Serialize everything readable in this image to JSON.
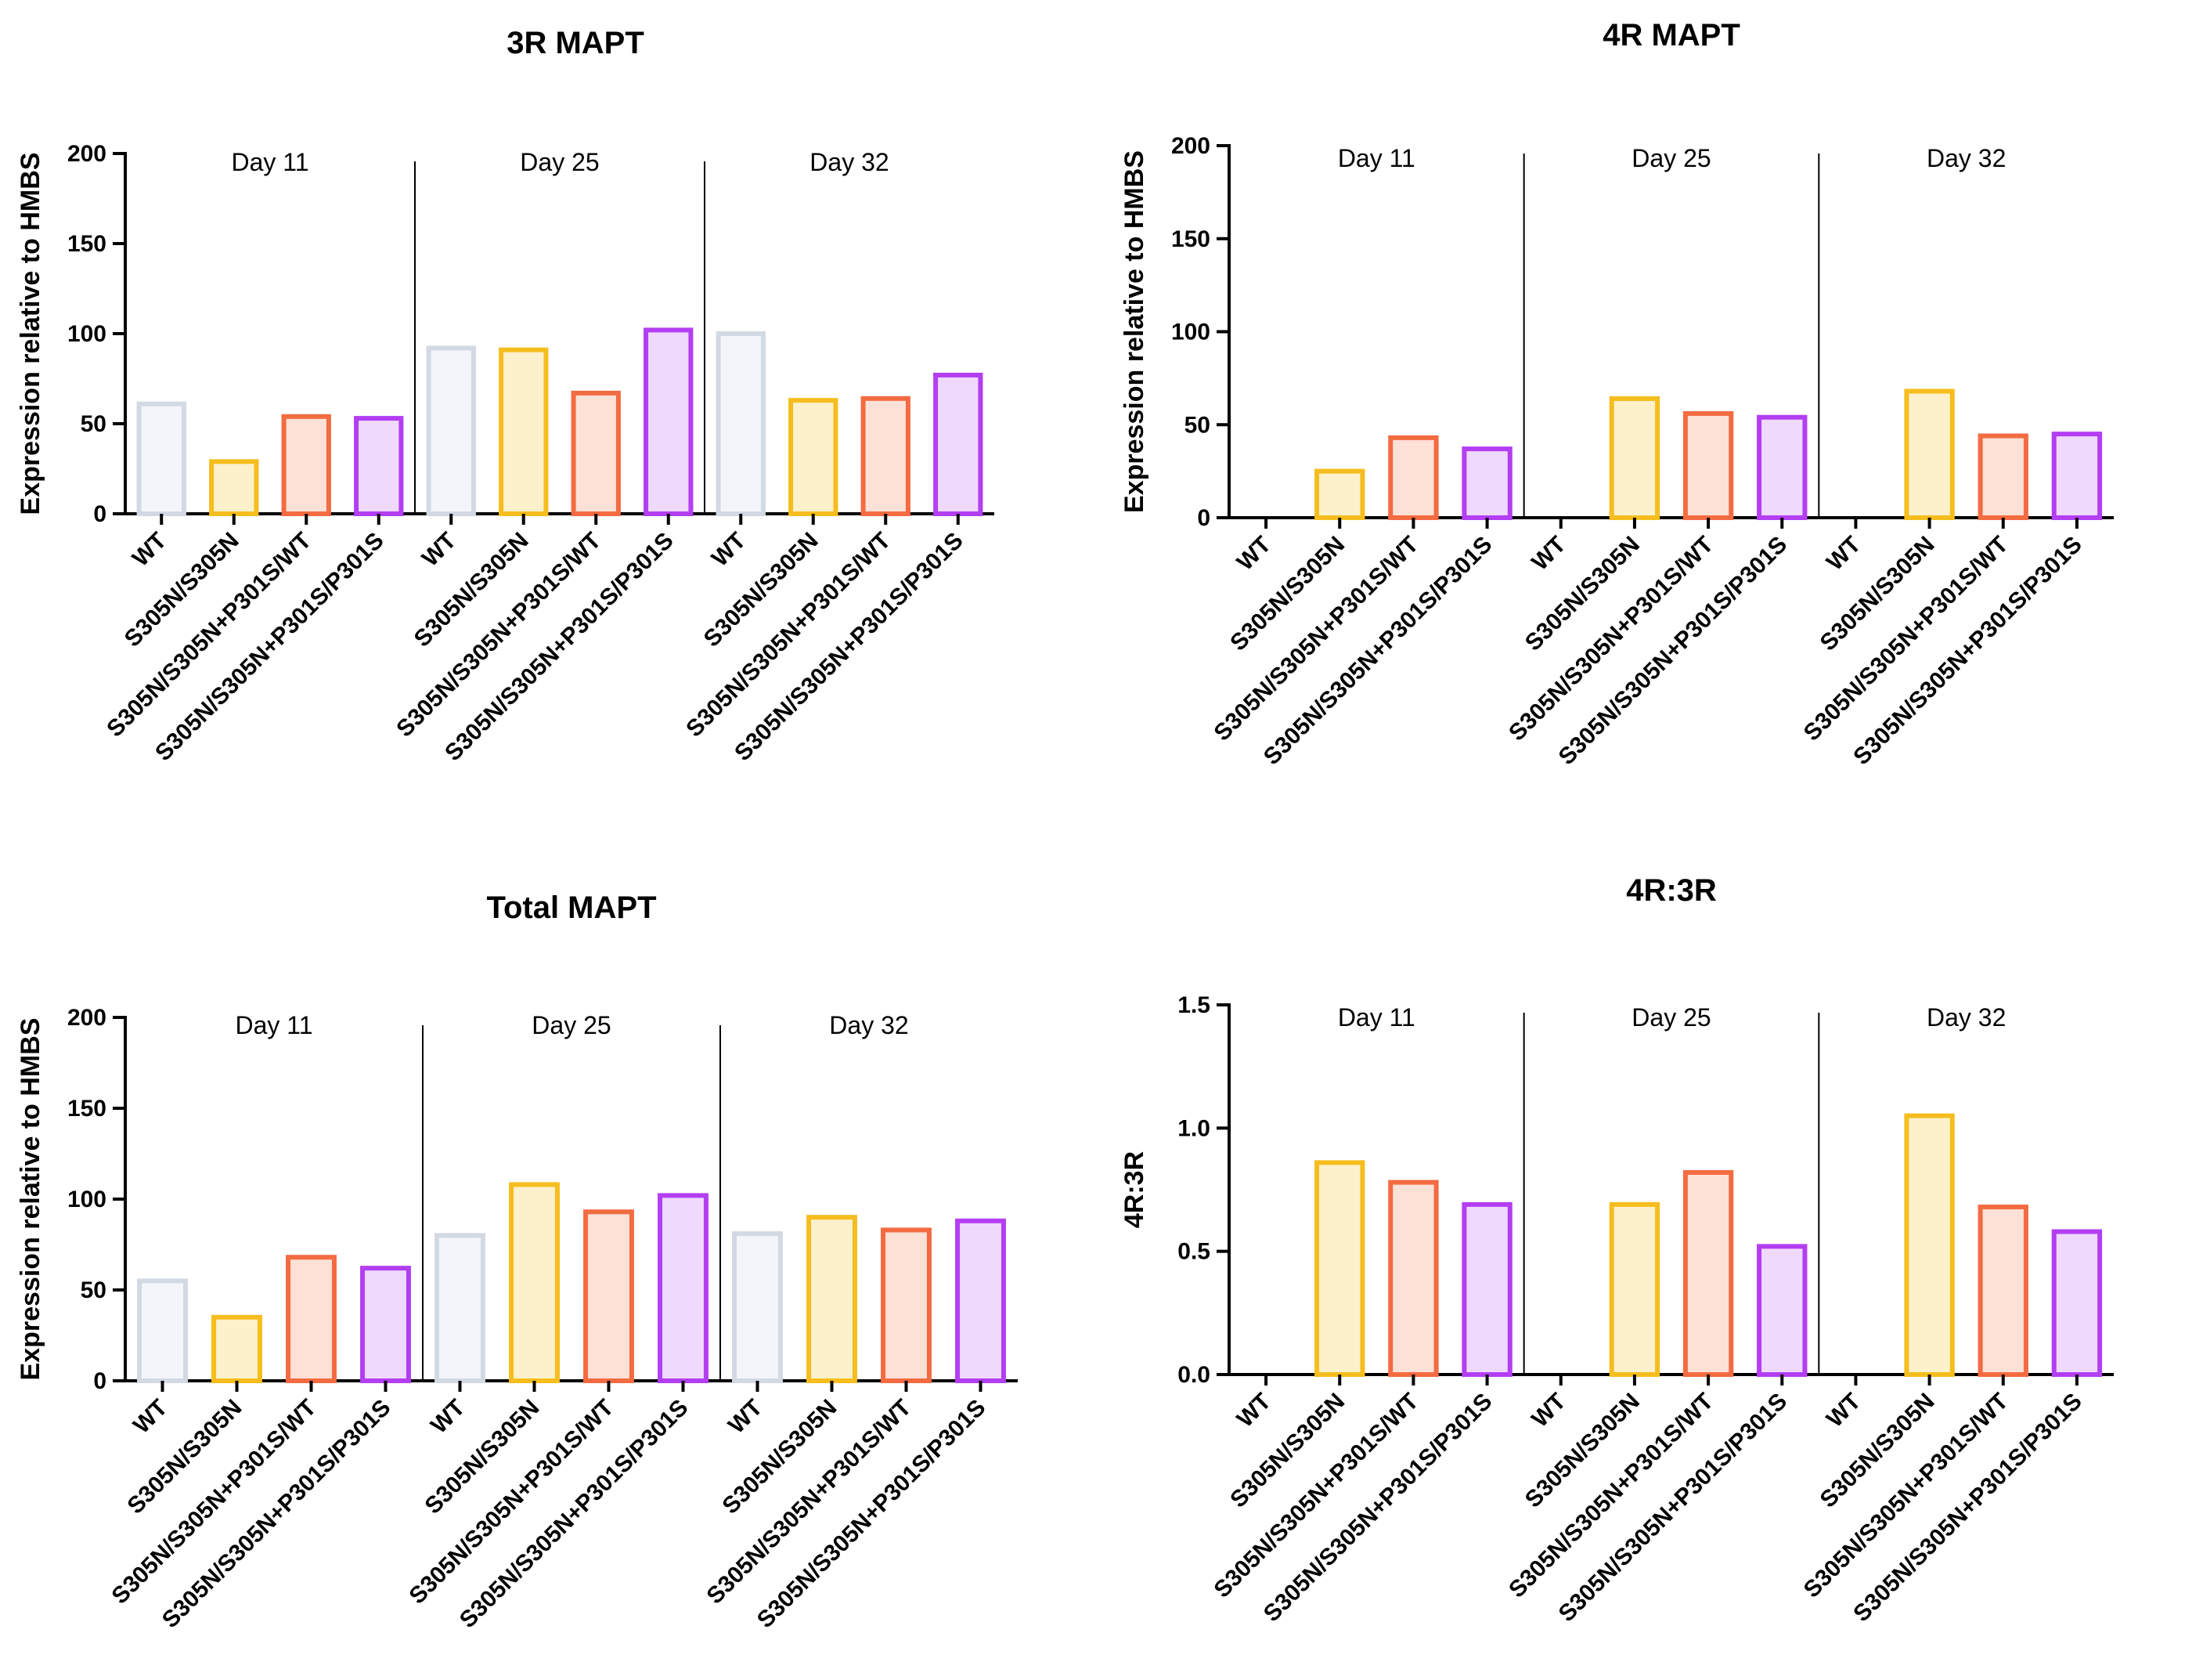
{
  "colors": {
    "WT": {
      "stroke": "#d3d9e3",
      "fill": "#f3f5fa"
    },
    "S305N/S305N": {
      "stroke": "#f6bd1e",
      "fill": "#fdf1cc"
    },
    "S305N/S305N+P301S/WT": {
      "stroke": "#f36b41",
      "fill": "#fde0d6"
    },
    "S305N/S305N+P301S/P301S": {
      "stroke": "#b33ef2",
      "fill": "#efd9fd"
    }
  },
  "chart_data": [
    {
      "type": "bar",
      "title": "3R MAPT",
      "ylabel": "Expression relative to HMBS",
      "ylim": [
        0,
        200
      ],
      "yticks": [
        "0",
        "50",
        "100",
        "150",
        "200"
      ],
      "groups": [
        "Day 11",
        "Day 25",
        "Day 32"
      ],
      "categories": [
        "WT",
        "S305N/S305N",
        "S305N/S305N+P301S/WT",
        "S305N/S305N+P301S/P301S"
      ],
      "values": [
        [
          61,
          29,
          54,
          53
        ],
        [
          92,
          91,
          67,
          102
        ],
        [
          100,
          63,
          64,
          77
        ]
      ]
    },
    {
      "type": "bar",
      "title": "4R MAPT",
      "ylabel": "Expression relative to HMBS",
      "ylim": [
        0,
        200
      ],
      "yticks": [
        "0",
        "50",
        "100",
        "150",
        "200"
      ],
      "groups": [
        "Day 11",
        "Day 25",
        "Day 32"
      ],
      "categories": [
        "WT",
        "S305N/S305N",
        "S305N/S305N+P301S/WT",
        "S305N/S305N+P301S/P301S"
      ],
      "values": [
        [
          0,
          25,
          43,
          37
        ],
        [
          0,
          64,
          56,
          54
        ],
        [
          0,
          68,
          44,
          45
        ]
      ]
    },
    {
      "type": "bar",
      "title": "Total MAPT",
      "ylabel": "Expression relative to HMBS",
      "ylim": [
        0,
        200
      ],
      "yticks": [
        "0",
        "50",
        "100",
        "150",
        "200"
      ],
      "groups": [
        "Day 11",
        "Day 25",
        "Day 32"
      ],
      "categories": [
        "WT",
        "S305N/S305N",
        "S305N/S305N+P301S/WT",
        "S305N/S305N+P301S/P301S"
      ],
      "values": [
        [
          55,
          35,
          68,
          62
        ],
        [
          80,
          108,
          93,
          102
        ],
        [
          81,
          90,
          83,
          88
        ]
      ]
    },
    {
      "type": "bar",
      "title": "4R:3R",
      "ylabel": "4R:3R",
      "ylim": [
        0,
        1.5
      ],
      "yticks": [
        "0.0",
        "0.5",
        "1.0",
        "1.5"
      ],
      "groups": [
        "Day 11",
        "Day 25",
        "Day 32"
      ],
      "categories": [
        "WT",
        "S305N/S305N",
        "S305N/S305N+P301S/WT",
        "S305N/S305N+P301S/P301S"
      ],
      "values": [
        [
          0,
          0.86,
          0.78,
          0.69
        ],
        [
          0,
          0.69,
          0.82,
          0.52
        ],
        [
          0,
          1.05,
          0.68,
          0.58
        ]
      ]
    }
  ]
}
